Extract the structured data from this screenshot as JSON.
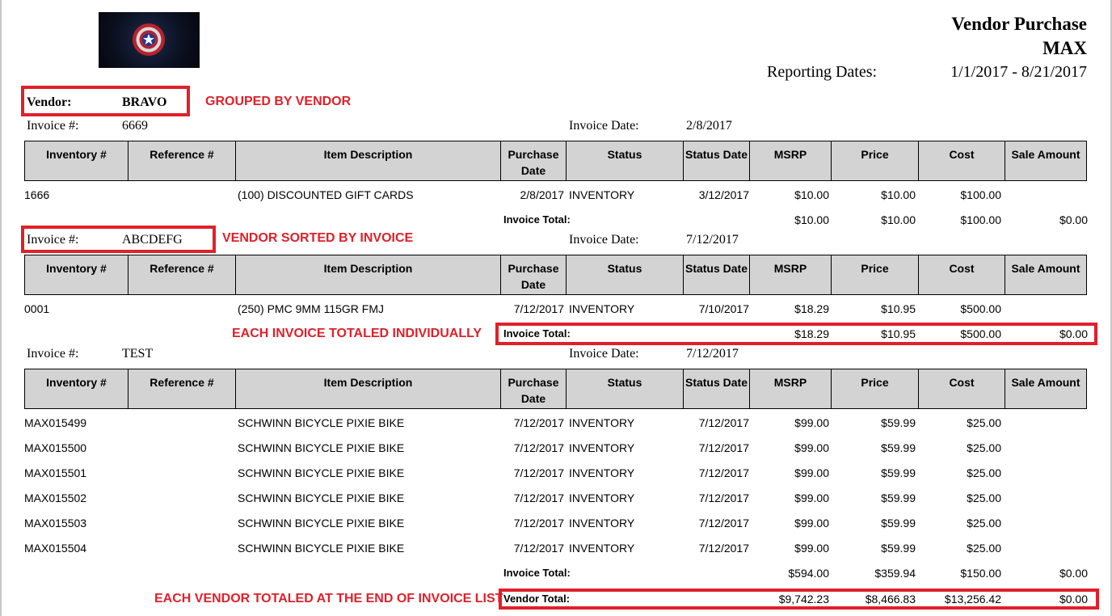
{
  "report": {
    "title_line1": "Vendor Purchase",
    "title_line2": "MAX",
    "reporting_label": "Reporting Dates:",
    "reporting_value": "1/1/2017 - 8/21/2017",
    "logo_icon": "captain-shield-logo"
  },
  "annotations": {
    "grouped": "GROUPED BY VENDOR",
    "sorted": "VENDOR SORTED BY INVOICE",
    "each_invoice": "EACH INVOICE TOTALED INDIVIDUALLY",
    "each_vendor": "EACH VENDOR TOTALED AT THE END OF INVOICE LIST",
    "highlight_color": "#e0202a"
  },
  "vendor": {
    "label": "Vendor:",
    "value": "BRAVO"
  },
  "labels": {
    "invoice_no": "Invoice #:",
    "invoice_date": "Invoice Date:",
    "invoice_total": "Invoice Total:",
    "vendor_total": "Vendor Total:"
  },
  "columns": [
    "Inventory #",
    "Reference #",
    "Item Description",
    "Purchase Date",
    "Status",
    "Status Date",
    "MSRP",
    "Price",
    "Cost",
    "Sale Amount"
  ],
  "invoices": [
    {
      "number": "6669",
      "date": "2/8/2017",
      "rows": [
        {
          "inventory": "1666",
          "reference": "",
          "description": "(100) DISCOUNTED GIFT CARDS",
          "purchase_date": "2/8/2017",
          "status": "INVENTORY",
          "status_date": "3/12/2017",
          "msrp": "$10.00",
          "price": "$10.00",
          "cost": "$100.00",
          "sale": ""
        }
      ],
      "total": {
        "msrp": "$10.00",
        "price": "$10.00",
        "cost": "$100.00",
        "sale": "$0.00"
      }
    },
    {
      "number": "ABCDEFG",
      "date": "7/12/2017",
      "rows": [
        {
          "inventory": "0001",
          "reference": "",
          "description": "(250) PMC 9MM 115GR FMJ",
          "purchase_date": "7/12/2017",
          "status": "INVENTORY",
          "status_date": "7/10/2017",
          "msrp": "$18.29",
          "price": "$10.95",
          "cost": "$500.00",
          "sale": ""
        }
      ],
      "total": {
        "msrp": "$18.29",
        "price": "$10.95",
        "cost": "$500.00",
        "sale": "$0.00"
      }
    },
    {
      "number": "TEST",
      "date": "7/12/2017",
      "rows": [
        {
          "inventory": "MAX015499",
          "reference": "",
          "description": "SCHWINN BICYCLE PIXIE BIKE",
          "purchase_date": "7/12/2017",
          "status": "INVENTORY",
          "status_date": "7/12/2017",
          "msrp": "$99.00",
          "price": "$59.99",
          "cost": "$25.00",
          "sale": ""
        },
        {
          "inventory": "MAX015500",
          "reference": "",
          "description": "SCHWINN BICYCLE PIXIE BIKE",
          "purchase_date": "7/12/2017",
          "status": "INVENTORY",
          "status_date": "7/12/2017",
          "msrp": "$99.00",
          "price": "$59.99",
          "cost": "$25.00",
          "sale": ""
        },
        {
          "inventory": "MAX015501",
          "reference": "",
          "description": "SCHWINN BICYCLE PIXIE BIKE",
          "purchase_date": "7/12/2017",
          "status": "INVENTORY",
          "status_date": "7/12/2017",
          "msrp": "$99.00",
          "price": "$59.99",
          "cost": "$25.00",
          "sale": ""
        },
        {
          "inventory": "MAX015502",
          "reference": "",
          "description": "SCHWINN BICYCLE PIXIE BIKE",
          "purchase_date": "7/12/2017",
          "status": "INVENTORY",
          "status_date": "7/12/2017",
          "msrp": "$99.00",
          "price": "$59.99",
          "cost": "$25.00",
          "sale": ""
        },
        {
          "inventory": "MAX015503",
          "reference": "",
          "description": "SCHWINN BICYCLE PIXIE BIKE",
          "purchase_date": "7/12/2017",
          "status": "INVENTORY",
          "status_date": "7/12/2017",
          "msrp": "$99.00",
          "price": "$59.99",
          "cost": "$25.00",
          "sale": ""
        },
        {
          "inventory": "MAX015504",
          "reference": "",
          "description": "SCHWINN BICYCLE PIXIE BIKE",
          "purchase_date": "7/12/2017",
          "status": "INVENTORY",
          "status_date": "7/12/2017",
          "msrp": "$99.00",
          "price": "$59.99",
          "cost": "$25.00",
          "sale": ""
        }
      ],
      "total": {
        "msrp": "$594.00",
        "price": "$359.94",
        "cost": "$150.00",
        "sale": "$0.00"
      }
    }
  ],
  "vendor_total": {
    "msrp": "$9,742.23",
    "price": "$8,466.83",
    "cost": "$13,256.42",
    "sale": "$0.00"
  }
}
